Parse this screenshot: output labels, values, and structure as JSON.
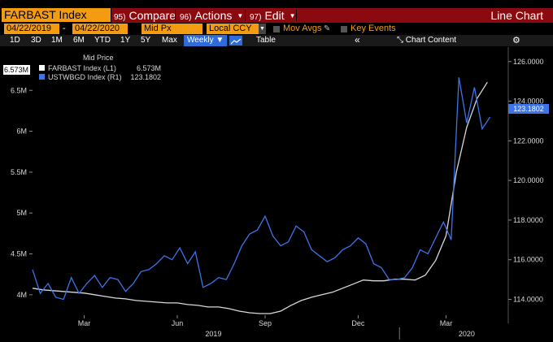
{
  "header": {
    "ticker": "FARBAST Index",
    "menu": [
      {
        "num": "95)",
        "label": "Compare",
        "has_caret": false
      },
      {
        "num": "96)",
        "label": "Actions",
        "has_caret": true
      },
      {
        "num": "97)",
        "label": "Edit",
        "has_caret": true
      }
    ],
    "view_title": "Line Chart"
  },
  "fields": {
    "start_date": "04/22/2019",
    "end_date": "04/22/2020",
    "price_field": "Mid Px",
    "currency": "Local CCY",
    "mov_avgs": "Mov Avgs",
    "key_events": "Key Events"
  },
  "periods": {
    "buttons": [
      "1D",
      "3D",
      "1M",
      "6M",
      "YTD",
      "1Y",
      "5Y",
      "Max"
    ],
    "frequency": "Weekly",
    "table": "Table",
    "chart_content": "Chart Content",
    "collapse": "«"
  },
  "icons": {
    "frequency_caret": "caret-down-icon",
    "line_style": "line-chart-icon",
    "chart_content": "chart-content-icon",
    "settings": "gear-icon",
    "edit_pencil": "pencil-icon"
  },
  "colors": {
    "accent": "#f39c12",
    "menu_bg": "#8b0a10",
    "farbast": "#d9d9d9",
    "ustwbgd": "#3d74e8"
  },
  "chart_data": {
    "type": "line",
    "legend": {
      "title": "Mid Price",
      "entries": [
        {
          "label": "FARBAST Index  (L1)",
          "value": "6.573M"
        },
        {
          "label": "USTWBGD Index  (R1)",
          "value": "123.1802"
        }
      ],
      "placement": "top-left"
    },
    "left_axis": {
      "ticks": [
        "4M",
        "4.5M",
        "5M",
        "5.5M",
        "6M",
        "6.5M"
      ],
      "tick_values": [
        4.0,
        4.5,
        5.0,
        5.5,
        6.0,
        6.5
      ],
      "ylim": [
        3.75,
        6.95
      ]
    },
    "right_axis": {
      "ticks": [
        "114.0000",
        "116.0000",
        "118.0000",
        "120.0000",
        "122.0000",
        "124.0000",
        "126.0000"
      ],
      "tick_values": [
        114,
        116,
        118,
        120,
        122,
        124,
        126
      ],
      "ylim": [
        113.2,
        126.4
      ]
    },
    "last_value_tags": {
      "left": "6.573M",
      "right": "123.1802"
    },
    "x_ticks": [
      "Mar",
      "Jun",
      "Sep",
      "Dec",
      "Mar"
    ],
    "x_years": [
      "2019",
      "2020"
    ],
    "series": [
      {
        "name": "FARBAST Index",
        "axis": "left",
        "color": "#d9d9d9",
        "points": [
          [
            0,
            4.08
          ],
          [
            2,
            4.06
          ],
          [
            4,
            4.05
          ],
          [
            6,
            4.04
          ],
          [
            8,
            4.03
          ],
          [
            10,
            4.02
          ],
          [
            12,
            4.0
          ],
          [
            14,
            3.98
          ],
          [
            16,
            3.96
          ],
          [
            18,
            3.95
          ],
          [
            20,
            3.93
          ],
          [
            22,
            3.92
          ],
          [
            24,
            3.91
          ],
          [
            26,
            3.9
          ],
          [
            28,
            3.9
          ],
          [
            30,
            3.88
          ],
          [
            32,
            3.87
          ],
          [
            34,
            3.85
          ],
          [
            36,
            3.85
          ],
          [
            38,
            3.83
          ],
          [
            40,
            3.8
          ],
          [
            42,
            3.78
          ],
          [
            44,
            3.77
          ],
          [
            46,
            3.77
          ],
          [
            48,
            3.8
          ],
          [
            50,
            3.87
          ],
          [
            52,
            3.93
          ],
          [
            54,
            3.97
          ],
          [
            56,
            4.0
          ],
          [
            58,
            4.03
          ],
          [
            60,
            4.08
          ],
          [
            62,
            4.13
          ],
          [
            64,
            4.18
          ],
          [
            66,
            4.17
          ],
          [
            68,
            4.17
          ],
          [
            70,
            4.19
          ],
          [
            72,
            4.19
          ],
          [
            74,
            4.18
          ],
          [
            76,
            4.24
          ],
          [
            78,
            4.42
          ],
          [
            80,
            4.72
          ],
          [
            82,
            5.5
          ],
          [
            84,
            6.05
          ],
          [
            86,
            6.4
          ],
          [
            88,
            6.6
          ]
        ]
      },
      {
        "name": "USTWBGD Index",
        "axis": "right",
        "color": "#3d74e8",
        "points": [
          [
            0,
            115.5
          ],
          [
            1.5,
            114.3
          ],
          [
            3,
            114.8
          ],
          [
            4.5,
            114.1
          ],
          [
            6,
            114.0
          ],
          [
            7.5,
            115.1
          ],
          [
            9,
            114.3
          ],
          [
            10.5,
            114.8
          ],
          [
            12,
            115.2
          ],
          [
            13.5,
            114.6
          ],
          [
            15,
            115.1
          ],
          [
            16.5,
            115.0
          ],
          [
            18,
            114.4
          ],
          [
            19.5,
            114.8
          ],
          [
            21,
            115.4
          ],
          [
            22.5,
            115.5
          ],
          [
            24,
            115.8
          ],
          [
            25.5,
            116.2
          ],
          [
            27,
            116.0
          ],
          [
            28.5,
            116.6
          ],
          [
            30,
            115.8
          ],
          [
            31.5,
            116.4
          ],
          [
            33,
            114.6
          ],
          [
            34.5,
            114.8
          ],
          [
            36,
            115.1
          ],
          [
            37.5,
            115.0
          ],
          [
            39,
            115.8
          ],
          [
            40.5,
            116.7
          ],
          [
            42,
            117.3
          ],
          [
            43.5,
            117.5
          ],
          [
            45,
            118.2
          ],
          [
            46.5,
            117.2
          ],
          [
            48,
            116.7
          ],
          [
            49.5,
            116.9
          ],
          [
            51,
            117.7
          ],
          [
            52.5,
            117.4
          ],
          [
            54,
            116.5
          ],
          [
            55.5,
            116.2
          ],
          [
            57,
            115.9
          ],
          [
            58.5,
            116.1
          ],
          [
            60,
            116.5
          ],
          [
            61.5,
            116.7
          ],
          [
            63,
            117.1
          ],
          [
            64.5,
            116.8
          ],
          [
            66,
            115.8
          ],
          [
            67.5,
            115.6
          ],
          [
            69,
            115.0
          ],
          [
            70.5,
            115.0
          ],
          [
            72,
            115.1
          ],
          [
            73.5,
            115.6
          ],
          [
            75,
            116.5
          ],
          [
            76.5,
            116.3
          ],
          [
            78,
            117.1
          ],
          [
            79.5,
            117.9
          ],
          [
            81,
            117.0
          ],
          [
            82.5,
            125.2
          ],
          [
            84,
            122.9
          ],
          [
            85.5,
            124.7
          ],
          [
            87,
            122.6
          ],
          [
            88.5,
            123.2
          ]
        ]
      }
    ]
  }
}
